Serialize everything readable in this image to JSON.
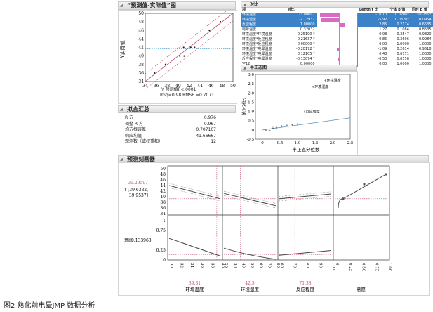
{
  "actual_predicted": {
    "title": "“预测值-实际值”图",
    "ylabel": "Y实际值",
    "xlabel": "Y 预测值P<.0001",
    "stats": "RSq=0.98 RMSE =0.7071",
    "ticks": [
      "34",
      "36",
      "38",
      "40",
      "42",
      "44",
      "46",
      "48",
      "50"
    ],
    "points": [
      [
        35.7,
        36
      ],
      [
        37.7,
        38
      ],
      [
        40.3,
        40
      ],
      [
        41,
        42
      ],
      [
        41.1,
        40
      ],
      [
        42.3,
        42
      ],
      [
        43,
        42
      ],
      [
        45.7,
        46
      ],
      [
        47.7,
        48
      ]
    ],
    "mean": 41.667,
    "axis_range": [
      34,
      50
    ]
  },
  "fit_summary": {
    "title": "拟合汇总",
    "rows": [
      {
        "label": "R 方",
        "value": "0.976"
      },
      {
        "label": "调整 R 方",
        "value": "0.967"
      },
      {
        "label": "均方根误差",
        "value": "0.707107"
      },
      {
        "label": "响应均值",
        "value": "41.66667"
      },
      {
        "label": "观测数（或权重和）",
        "value": "12"
      }
    ]
  },
  "effects": {
    "title": "对比",
    "headers": [
      "项",
      "对比",
      "",
      "Lenth t 比",
      "个体 p 值",
      "同时 p 值"
    ],
    "rows": [
      {
        "term": "环境温度",
        "est": "-3.00697",
        "flag": "",
        "t": "-10.10",
        "p1": "0.0206*",
        "p2": "0.0259*",
        "sel": true,
        "v": -3.0
      },
      {
        "term": "环境湿度",
        "est": "-2.72932",
        "flag": "",
        "t": "-5.92",
        "p1": "0.0320*",
        "p2": "0.0954",
        "sel": true,
        "v": -2.7
      },
      {
        "term": "反应程度",
        "est": "1.00000",
        "flag": "",
        "t": "2.85",
        "p1": "0.2174",
        "p2": "0.6535",
        "sel": true,
        "v": 1.0
      },
      {
        "term": "电晕温度",
        "est": "0.32032",
        "flag": "",
        "t": "1.27",
        "p1": "0.1084",
        "p2": "0.8535",
        "sel": false,
        "v": 0.32
      },
      {
        "term": "环境温度*环境湿度",
        "est": "0.25190",
        "flag": "*",
        "t": "0.98",
        "p1": "0.3547",
        "p2": "0.9820",
        "sel": false,
        "v": 0.25
      },
      {
        "term": "环境温度*反应程度",
        "est": "0.21637",
        "flag": "*",
        "t": "0.85",
        "p1": "0.3696",
        "p2": "0.9984",
        "sel": false,
        "v": 0.22
      },
      {
        "term": "环境湿度*反应程度",
        "est": "0.00000",
        "flag": "*",
        "t": "0.00",
        "p1": "1.0000",
        "p2": "1.0000",
        "sel": false,
        "v": 0
      },
      {
        "term": "环境温度*电晕温度",
        "est": "-0.28172",
        "flag": "*",
        "t": "-1.09",
        "p1": "0.2614",
        "p2": "0.9518",
        "sel": false,
        "v": -0.28
      },
      {
        "term": "环境湿度*电晕温度",
        "est": "0.12105",
        "flag": "*",
        "t": "0.48",
        "p1": "0.6771",
        "p2": "1.0000",
        "sel": false,
        "v": 0.12
      },
      {
        "term": "反应程度*电晕温度",
        "est": "-0.13074",
        "flag": "*",
        "t": "-0.50",
        "p1": "0.6556",
        "p2": "1.0000",
        "sel": false,
        "v": -0.13
      },
      {
        "term": "空12",
        "est": "0.00000",
        "flag": "",
        "t": "0.00",
        "p1": "1.0000",
        "p2": "1.0000",
        "sel": false,
        "v": 0
      }
    ]
  },
  "half_normal": {
    "title": "半正态图",
    "ylabel": "绝对对比",
    "xlabel": "半正态分位数",
    "yticks": [
      "3.0",
      "2.5",
      "2.0",
      "1.5",
      "1.0",
      "0.5",
      "0",
      "-0.5"
    ],
    "xticks": [
      "0",
      "0.5",
      "1.0",
      "1.5",
      "2.0",
      "2.5"
    ],
    "labels": [
      {
        "text": "环境温度",
        "x": 1.75,
        "y": 2.7
      },
      {
        "text": "环境湿度",
        "x": 1.4,
        "y": 2.35
      },
      {
        "text": "反应程度",
        "x": 1.15,
        "y": 1.0
      }
    ],
    "points": [
      [
        0.1,
        0
      ],
      [
        0.2,
        0
      ],
      [
        0.3,
        0.1
      ],
      [
        0.4,
        0.12
      ],
      [
        0.55,
        0.2
      ],
      [
        0.7,
        0.25
      ],
      [
        0.85,
        0.28
      ],
      [
        1.0,
        0.32
      ]
    ]
  },
  "profiler": {
    "title": "预测刻画器",
    "y_value": "39.29597",
    "y_label": "Y",
    "y_ci": "[39.6382,",
    "y_ci2": "39.9537]",
    "d_label": "意愿",
    "d_value": "0.133963",
    "y_ticks": [
      "50",
      "48",
      "46",
      "44",
      "42",
      "40",
      "38",
      "36",
      "34"
    ],
    "d_ticks": [
      "1",
      "0.75",
      "0.25",
      "0"
    ],
    "factors": [
      {
        "name": "环境温度",
        "value": "39.31",
        "ticks": [
          "30",
          "32",
          "34",
          "36",
          "38",
          "40"
        ]
      },
      {
        "name": "环境湿度",
        "value": "42.5",
        "ticks": [
          "20",
          "30",
          "40",
          "50",
          "60",
          "70",
          "80"
        ]
      },
      {
        "name": "反应程度",
        "value": "71.38",
        "ticks": [
          "60",
          "70",
          "80",
          "90",
          "100"
        ]
      },
      {
        "name": "意愿",
        "value": "",
        "ticks": [
          "0",
          "0.25",
          "0.50",
          "0.75",
          "1.00"
        ]
      }
    ]
  },
  "caption": "图2 熟化前电晕JMP 数据分析",
  "colors": {
    "selection": "#3b82c8",
    "fit_line": "#c0506a",
    "effect_bar": "#d86bc4"
  }
}
